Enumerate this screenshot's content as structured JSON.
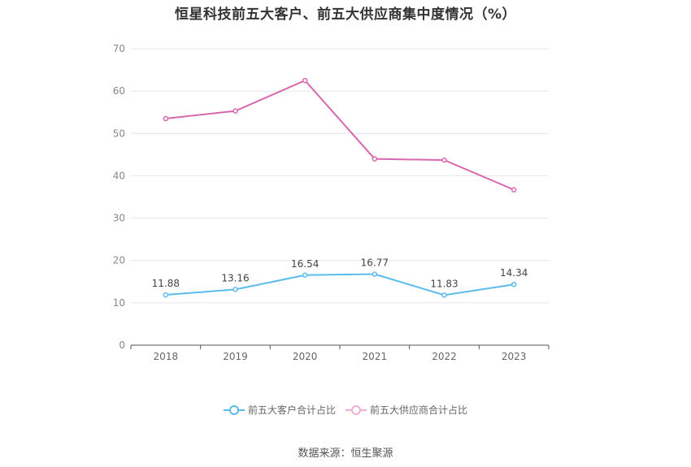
{
  "chart_data": {
    "type": "line",
    "title": "恒星科技前五大客户、前五大供应商集中度情况（%）",
    "categories": [
      "2018",
      "2019",
      "2020",
      "2021",
      "2022",
      "2023"
    ],
    "series": [
      {
        "name": "前五大客户合计占比",
        "values": [
          11.88,
          13.16,
          16.54,
          16.77,
          11.83,
          14.34
        ],
        "color": "#5bbcec",
        "show_labels": true
      },
      {
        "name": "前五大供应商合计占比",
        "values": [
          53.5,
          55.3,
          62.5,
          44.0,
          43.7,
          36.7
        ],
        "color": "#d867ae",
        "show_labels": false
      }
    ],
    "ylim": [
      0,
      70
    ],
    "yticks": [
      0,
      10,
      20,
      30,
      40,
      50,
      60,
      70
    ],
    "grid": true,
    "legend_position": "bottom"
  },
  "source": "数据来源：恒生聚源"
}
